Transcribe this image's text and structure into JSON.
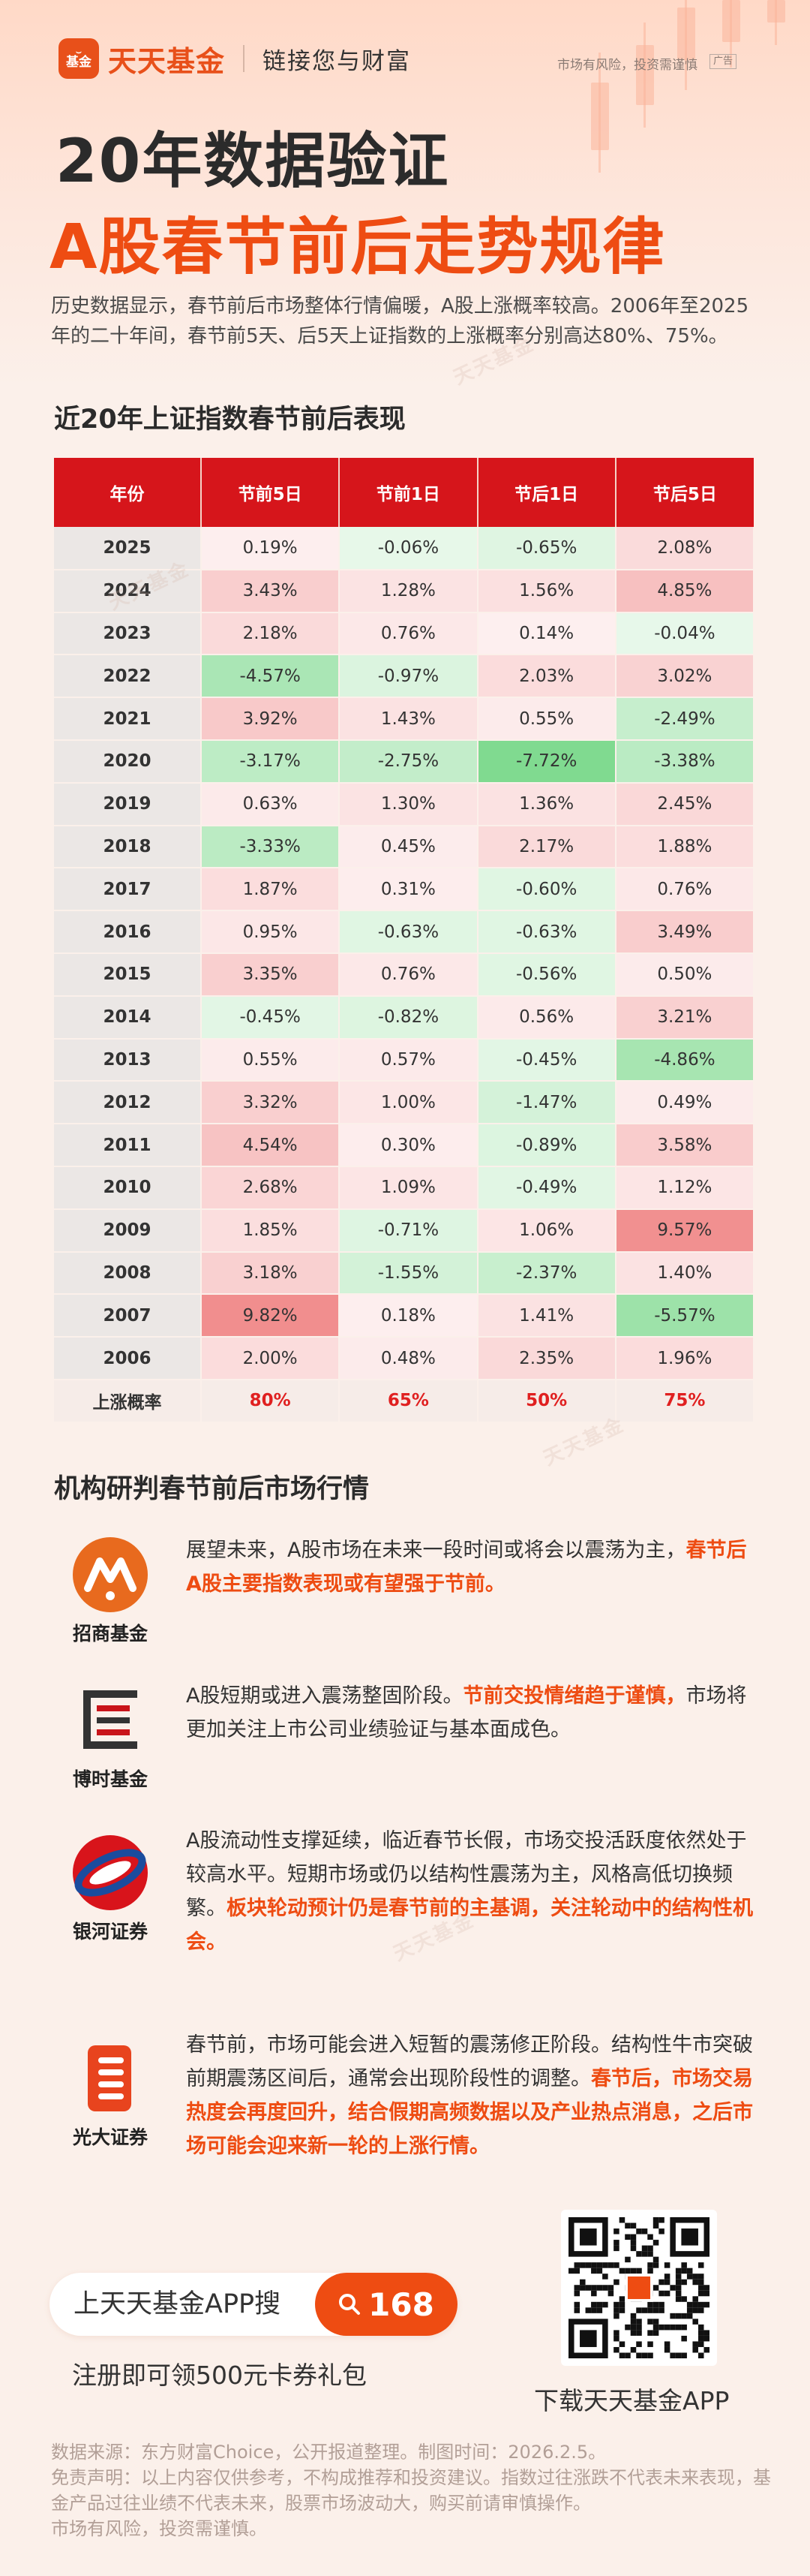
{
  "header": {
    "logo_text": "基金",
    "brand": "天天基金",
    "slogan": "链接您与财富",
    "risk_notice": "市场有风险，投资需谨慎",
    "ad_tag": "广告"
  },
  "title": {
    "line1": "20年数据验证",
    "line2": "A股春节前后走势规律"
  },
  "intro": "历史数据显示，春节前后市场整体行情偏暖，A股上涨概率较高。2006年至2025年的二十年间，春节前5天、后5天上证指数的上涨概率分别高达80%、75%。",
  "table_section": {
    "heading": "近20年上证指数春节前后表现",
    "headers": [
      "年份",
      "节前5日",
      "节前1日",
      "节后1日",
      "节后5日"
    ],
    "rows": [
      {
        "year": "2025",
        "values": [
          "0.19%",
          "-0.06%",
          "-0.65%",
          "2.08%"
        ]
      },
      {
        "year": "2024",
        "values": [
          "3.43%",
          "1.28%",
          "1.56%",
          "4.85%"
        ]
      },
      {
        "year": "2023",
        "values": [
          "2.18%",
          "0.76%",
          "0.14%",
          "-0.04%"
        ]
      },
      {
        "year": "2022",
        "values": [
          "-4.57%",
          "-0.97%",
          "2.03%",
          "3.02%"
        ]
      },
      {
        "year": "2021",
        "values": [
          "3.92%",
          "1.43%",
          "0.55%",
          "-2.49%"
        ]
      },
      {
        "year": "2020",
        "values": [
          "-3.17%",
          "-2.75%",
          "-7.72%",
          "-3.38%"
        ]
      },
      {
        "year": "2019",
        "values": [
          "0.63%",
          "1.30%",
          "1.36%",
          "2.45%"
        ]
      },
      {
        "year": "2018",
        "values": [
          "-3.33%",
          "0.45%",
          "2.17%",
          "1.88%"
        ]
      },
      {
        "year": "2017",
        "values": [
          "1.87%",
          "0.31%",
          "-0.60%",
          "0.76%"
        ]
      },
      {
        "year": "2016",
        "values": [
          "0.95%",
          "-0.63%",
          "-0.63%",
          "3.49%"
        ]
      },
      {
        "year": "2015",
        "values": [
          "3.35%",
          "0.76%",
          "-0.56%",
          "0.50%"
        ]
      },
      {
        "year": "2014",
        "values": [
          "-0.45%",
          "-0.82%",
          "0.56%",
          "3.21%"
        ]
      },
      {
        "year": "2013",
        "values": [
          "0.55%",
          "0.57%",
          "-0.45%",
          "-4.86%"
        ]
      },
      {
        "year": "2012",
        "values": [
          "3.32%",
          "1.00%",
          "-1.47%",
          "0.49%"
        ]
      },
      {
        "year": "2011",
        "values": [
          "4.54%",
          "0.30%",
          "-0.89%",
          "3.58%"
        ]
      },
      {
        "year": "2010",
        "values": [
          "2.68%",
          "1.09%",
          "-0.49%",
          "1.12%"
        ]
      },
      {
        "year": "2009",
        "values": [
          "1.85%",
          "-0.71%",
          "1.06%",
          "9.57%"
        ]
      },
      {
        "year": "2008",
        "values": [
          "3.18%",
          "-1.55%",
          "-2.37%",
          "1.40%"
        ]
      },
      {
        "year": "2007",
        "values": [
          "9.82%",
          "0.18%",
          "1.41%",
          "-5.57%"
        ]
      },
      {
        "year": "2006",
        "values": [
          "2.00%",
          "0.48%",
          "2.35%",
          "1.96%"
        ]
      }
    ],
    "summary": {
      "label": "上涨概率",
      "values": [
        "80%",
        "65%",
        "50%",
        "75%"
      ]
    }
  },
  "institutions_section": {
    "heading": "机构研判春节前后市场行情",
    "items": [
      {
        "name": "招商基金",
        "icon": "china-merchants-fund-logo",
        "text": "展望未来，A股市场在未来一段时间或将会以震荡为主，",
        "highlight": "春节后A股主要指数表现或有望强于节前。",
        "text_after": ""
      },
      {
        "name": "博时基金",
        "icon": "bosera-fund-logo",
        "text": "A股短期或进入震荡整固阶段。",
        "highlight": "节前交投情绪趋于谨慎，",
        "text_after": "市场将更加关注上市公司业绩验证与基本面成色。"
      },
      {
        "name": "银河证券",
        "icon": "galaxy-securities-logo",
        "text": "A股流动性支撑延续，临近春节长假，市场交投活跃度依然处于较高水平。短期市场或仍以结构性震荡为主，风格高低切换频繁。",
        "highlight": "板块轮动预计仍是春节前的主基调，关注轮动中的结构性机会。",
        "text_after": ""
      },
      {
        "name": "光大证券",
        "icon": "everbright-securities-logo",
        "text": "春节前，市场可能会进入短暂的震荡修正阶段。结构性牛市突破前期震荡区间后，通常会出现阶段性的调整。",
        "highlight": "春节后，市场交易热度会再度回升，结合假期高频数据以及产业热点消息，之后市场可能会迎来新一轮的上涨行情。",
        "text_after": ""
      }
    ]
  },
  "cta": {
    "search_label": "上天天基金APP搜",
    "search_code": "168",
    "gift": "注册即可领500元卡券礼包",
    "qr_label": "下载天天基金APP"
  },
  "footer": {
    "source": "数据来源：东方财富Choice，公开报道整理。制图时间：2026.2.5。",
    "disclaimer": "免责声明：以上内容仅供参考，不构成推荐和投资建议。指数过往涨跌不代表未来表现，基金产品过往业绩不代表未来，股票市场波动大，购买前请审慎操作。",
    "risk": "市场有风险，投资需谨慎。"
  },
  "watermark": "天天基金",
  "colors": {
    "brand": "#ee4c12",
    "table_header": "#d6151b",
    "up": "#f4a8a8",
    "down": "#8fd89c"
  }
}
